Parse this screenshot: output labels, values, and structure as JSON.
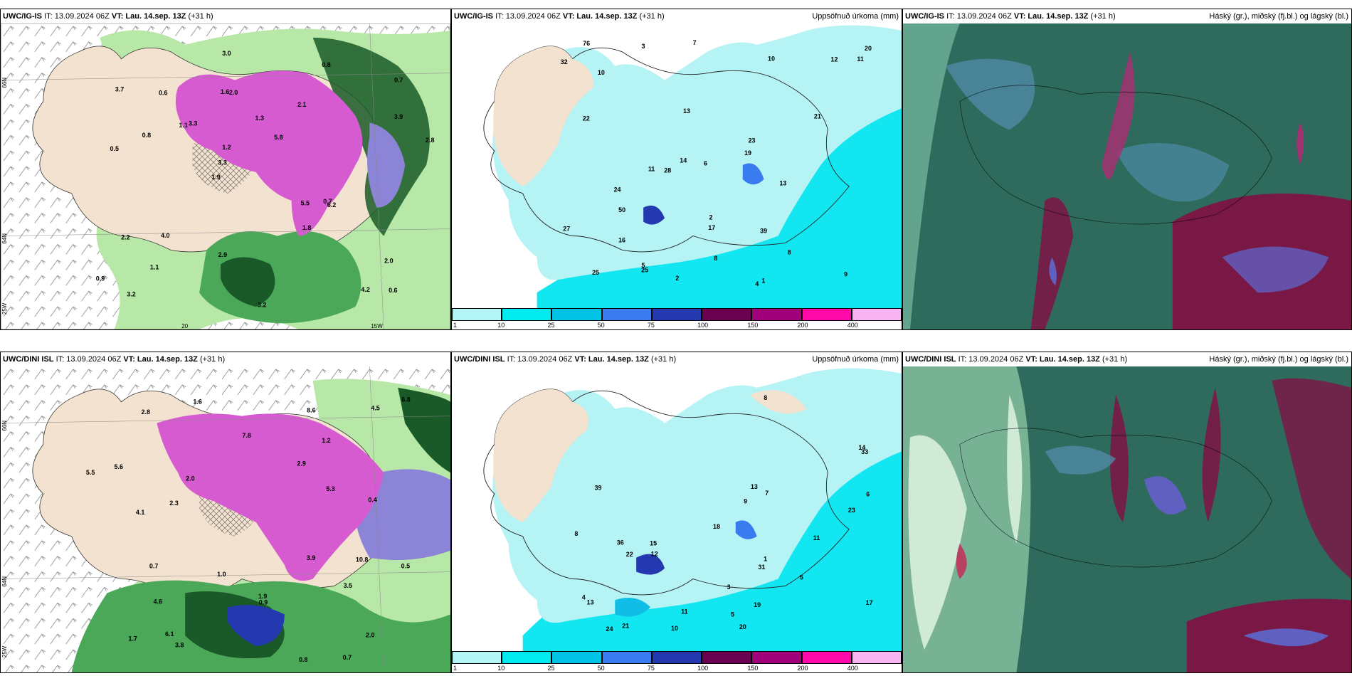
{
  "panels": {
    "top_left": {
      "model": "UWC/IG-IS",
      "it": "IT: 13.09.2024 06Z",
      "vt_label": "VT:",
      "vt": "Lau. 14.sep. 13Z",
      "lead": "(+31 h)"
    },
    "top_mid": {
      "model": "UWC/IG-IS",
      "it": "IT: 13.09.2024 06Z",
      "vt_label": "VT:",
      "vt": "Lau. 14.sep. 13Z",
      "lead": "(+31 h)",
      "right": "Uppsöfnuð úrkoma (mm)"
    },
    "top_right": {
      "model": "UWC/IG-IS",
      "it": "IT: 13.09.2024 06Z",
      "vt_label": "VT:",
      "vt": "Lau. 14.sep. 13Z",
      "lead": "(+31 h)",
      "right": "Háský (gr.), miðský (fj.bl.) og lágský (bl.)"
    },
    "bot_left": {
      "model": "UWC/DINI ISL",
      "it": "IT: 13.09.2024 06Z",
      "vt_label": "VT:",
      "vt": "Lau. 14.sep. 13Z",
      "lead": "(+31 h)"
    },
    "bot_mid": {
      "model": "UWC/DINI ISL",
      "it": "IT: 13.09.2024 06Z",
      "vt_label": "VT:",
      "vt": "Lau. 14.sep. 13Z",
      "lead": "(+31 h)",
      "right": "Uppsöfnuð úrkoma (mm)"
    },
    "bot_right": {
      "model": "UWC/DINI ISL",
      "it": "IT: 13.09.2024 06Z",
      "vt_label": "VT:",
      "vt": "Lau. 14.sep. 13Z",
      "lead": "(+31 h)",
      "right": "Háský (gr.), miðský (fj.bl.) og lágský (bl.)"
    }
  },
  "axis_labels": {
    "lat66": "66N",
    "lat64": "64N",
    "lon25": "25W",
    "lon20": "20",
    "lon15": "15W"
  },
  "colorbar": {
    "ticks": [
      "1",
      "10",
      "25",
      "50",
      "75",
      "100",
      "150",
      "200",
      "400"
    ],
    "colors": [
      "#b3f5f5",
      "#00eaf0",
      "#00c3e6",
      "#3a7cf0",
      "#2438b0",
      "#6a0050",
      "#a0007a",
      "#ff0aa8",
      "#f7b3f2"
    ]
  },
  "colors": {
    "land": "#f3e2d0",
    "precip_light": "#b5f3f5",
    "precip_med": "#12e6f0",
    "precip_heavy": "#10bde6",
    "green_light": "#b8e8a8",
    "green_med": "#4aa858",
    "green_dark": "#1a5a28",
    "magenta": "#d65ad0",
    "cloud_base": "#2e6b5c",
    "cloud_mid": "#4f8aa6",
    "cloud_high": "#7a1845"
  },
  "map_values": {
    "top_left": [
      "0.6",
      "0.5",
      "0.7",
      "1.9",
      "2.1",
      "3.2",
      "1.6",
      "1.3",
      "2.2",
      "3.3",
      "0.9",
      "1.1",
      "2.0",
      "5.8",
      "6.2",
      "3.7",
      "3.0",
      "2.8",
      "5.5",
      "3.9",
      "3.3",
      "2.9",
      "1.2",
      "0.6",
      "0.8",
      "4.0",
      "4.2",
      "2.0",
      "0.7",
      "3.2",
      "1.1",
      "0.8",
      "1.8"
    ],
    "top_mid": [
      "2",
      "4",
      "5",
      "8",
      "3",
      "10",
      "11",
      "9",
      "7",
      "13",
      "12",
      "8",
      "14",
      "17",
      "10",
      "19",
      "22",
      "25",
      "28",
      "32",
      "39",
      "20",
      "23",
      "25",
      "21",
      "24",
      "27",
      "50",
      "76",
      "13",
      "6",
      "1",
      "2",
      "11",
      "16"
    ],
    "bot_left": [
      "0.5",
      "0.7",
      "0.9",
      "1.7",
      "1.9",
      "2.0",
      "1.6",
      "1.2",
      "0.8",
      "0.4",
      "3.9",
      "4.5",
      "5.5",
      "5.3",
      "3.8",
      "2.8",
      "4.6",
      "6.1",
      "8.6",
      "7.8",
      "5.6",
      "10.8",
      "2.0",
      "4.1",
      "6.8",
      "2.9",
      "3.5",
      "1.0",
      "0.7",
      "2.3"
    ],
    "bot_mid": [
      "1",
      "4",
      "5",
      "7",
      "6",
      "11",
      "8",
      "12",
      "13",
      "17",
      "11",
      "15",
      "14",
      "9",
      "36",
      "23",
      "22",
      "31",
      "21",
      "19",
      "33",
      "24",
      "39",
      "18",
      "13",
      "8",
      "20",
      "10",
      "5",
      "3"
    ]
  }
}
